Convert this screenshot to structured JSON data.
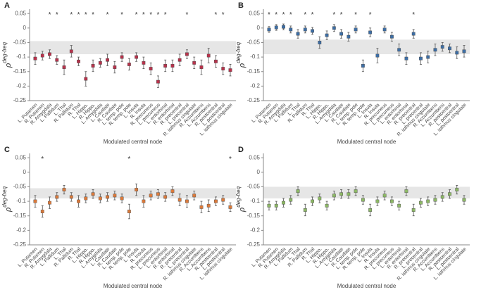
{
  "chart_data": [
    {
      "type": "errorbar",
      "panel_label": "A",
      "x_label": "Modulated central node",
      "y_label": "ρ",
      "y_label_sup": "deg-freq",
      "color": "#b8324b",
      "band_color": "#e6e6e6",
      "categories": [
        "L. Putamen",
        "R. Putamen",
        "R. Amygdala",
        "L. Pallidum",
        "L. Thal",
        "R. Pallidum",
        "R. Thal",
        "L. Hippo.",
        "R. Hippo.",
        "L. Amygdala",
        "L. Caudate",
        "R. Caudate",
        "L. temp. pole",
        "R. temp. pole",
        "L. Insula",
        "R. Insula",
        "R. precuneus",
        "L. precuneus",
        "L. entorhinal",
        "R. entorhinal",
        "R. precentral",
        "L. precentral",
        "R. isthmus cingulate",
        "R. Accumbens",
        "L. Accumbens",
        "R. postcentral",
        "L. postcentral",
        "L. isthmus cingulate"
      ],
      "values": [
        -0.105,
        -0.095,
        -0.09,
        -0.11,
        -0.135,
        -0.08,
        -0.115,
        -0.175,
        -0.13,
        -0.12,
        -0.11,
        -0.135,
        -0.1,
        -0.125,
        -0.1,
        -0.12,
        -0.14,
        -0.185,
        -0.13,
        -0.13,
        -0.11,
        -0.09,
        -0.12,
        -0.135,
        -0.095,
        -0.115,
        -0.14,
        -0.145
      ],
      "errors": [
        0.02,
        0.015,
        0.015,
        0.015,
        0.025,
        0.02,
        0.015,
        0.025,
        0.02,
        0.015,
        0.02,
        0.02,
        0.015,
        0.02,
        0.015,
        0.02,
        0.02,
        0.02,
        0.02,
        0.02,
        0.02,
        0.015,
        0.02,
        0.025,
        0.025,
        0.02,
        0.02,
        0.02
      ],
      "significant": [
        false,
        false,
        true,
        true,
        false,
        true,
        true,
        true,
        true,
        false,
        true,
        false,
        true,
        false,
        true,
        true,
        true,
        true,
        true,
        false,
        false,
        true,
        false,
        false,
        false,
        true,
        true,
        false
      ],
      "star_label": "*",
      "band": [
        -0.09,
        -0.045
      ],
      "ylim": [
        -0.25,
        0.065
      ],
      "yticks": [
        -0.25,
        -0.2,
        -0.15,
        -0.1,
        -0.05,
        0,
        0.05
      ]
    },
    {
      "type": "errorbar",
      "panel_label": "B",
      "x_label": "Modulated central node",
      "y_label": "ρ",
      "y_label_sup": "deg-freq",
      "color": "#3d6ea5",
      "band_color": "#e6e6e6",
      "categories": [
        "L. Putamen",
        "R. Putamen",
        "R. Amygdala",
        "L. Pallidum",
        "L. Thal",
        "R. Pallidum",
        "R. Thal",
        "L. Hippo.",
        "R. Hippo.",
        "L. Amygdala",
        "L. Caudate",
        "R. Caudate",
        "L. temp. pole",
        "R. temp. pole",
        "L. Insula",
        "R. Insula",
        "R. precuneus",
        "L. precuneus",
        "L. entorhinal",
        "R. entorhinal",
        "R. precentral",
        "L. precentral",
        "R. isthmus cingulate",
        "R. Accumbens",
        "L. Accumbens",
        "R. postcentral",
        "L. postcentral",
        "L. isthmus cingulate"
      ],
      "values": [
        -0.005,
        0.002,
        0.004,
        -0.005,
        -0.02,
        -0.005,
        -0.01,
        -0.05,
        -0.025,
        0,
        -0.02,
        -0.03,
        -0.005,
        -0.13,
        -0.015,
        -0.095,
        -0.005,
        -0.03,
        -0.075,
        -0.105,
        -0.02,
        -0.105,
        -0.1,
        -0.075,
        -0.065,
        -0.07,
        -0.085,
        -0.08
      ],
      "errors": [
        0.01,
        0.01,
        0.01,
        0.012,
        0.015,
        0.012,
        0.012,
        0.02,
        0.015,
        0.012,
        0.015,
        0.015,
        0.012,
        0.02,
        0.015,
        0.025,
        0.012,
        0.015,
        0.02,
        0.02,
        0.015,
        0.02,
        0.02,
        0.02,
        0.015,
        0.015,
        0.02,
        0.02
      ],
      "significant": [
        true,
        true,
        true,
        true,
        false,
        true,
        true,
        false,
        false,
        true,
        true,
        false,
        true,
        false,
        true,
        false,
        false,
        false,
        false,
        false,
        true,
        false,
        false,
        false,
        false,
        false,
        false,
        false
      ],
      "star_label": "*",
      "band": [
        -0.09,
        -0.04
      ],
      "ylim": [
        -0.25,
        0.065
      ],
      "yticks": [
        -0.25,
        -0.2,
        -0.15,
        -0.1,
        -0.05,
        0,
        0.05
      ]
    },
    {
      "type": "errorbar",
      "panel_label": "C",
      "x_label": "Modulated central node",
      "y_label": "ρ",
      "y_label_sup": "deg-freq",
      "color": "#dc7a3b",
      "band_color": "#e6e6e6",
      "categories": [
        "L. Putamen",
        "R. Putamen",
        "R. Amygdala",
        "L. Pallidum",
        "L. Thal",
        "R. Pallidum",
        "R. Thal",
        "L. Hippo.",
        "R. Hippo.",
        "L. Amygdala",
        "L. Caudate",
        "R. Caudate",
        "L. temp. pole",
        "R. temp. pole",
        "L. Insula",
        "R. Insula",
        "R. precuneus",
        "L. precuneus",
        "L. entorhinal",
        "R. entorhinal",
        "R. precentral",
        "L. precentral",
        "R. isthmus cingulate",
        "R. Accumbens",
        "L. Accumbens",
        "R. postcentral",
        "L. postcentral",
        "L. isthmus cingulate"
      ],
      "values": [
        -0.1,
        -0.135,
        -0.105,
        -0.085,
        -0.06,
        -0.085,
        -0.1,
        -0.09,
        -0.075,
        -0.09,
        -0.085,
        -0.08,
        -0.09,
        -0.135,
        -0.06,
        -0.1,
        -0.08,
        -0.075,
        -0.085,
        -0.065,
        -0.095,
        -0.1,
        -0.08,
        -0.12,
        -0.115,
        -0.1,
        -0.095,
        -0.12
      ],
      "errors": [
        0.02,
        0.02,
        0.02,
        0.015,
        0.015,
        0.015,
        0.02,
        0.015,
        0.015,
        0.015,
        0.015,
        0.015,
        0.015,
        0.025,
        0.02,
        0.02,
        0.015,
        0.015,
        0.015,
        0.015,
        0.02,
        0.02,
        0.015,
        0.02,
        0.02,
        0.015,
        0.015,
        0.015
      ],
      "significant": [
        false,
        true,
        false,
        false,
        false,
        false,
        false,
        false,
        false,
        false,
        false,
        false,
        false,
        true,
        false,
        false,
        false,
        false,
        false,
        false,
        false,
        false,
        false,
        false,
        false,
        false,
        false,
        true
      ],
      "star_label": "*",
      "band": [
        -0.09,
        -0.055
      ],
      "ylim": [
        -0.25,
        0.065
      ],
      "yticks": [
        -0.25,
        -0.2,
        -0.15,
        -0.1,
        -0.05,
        0,
        0.05
      ]
    },
    {
      "type": "errorbar",
      "panel_label": "D",
      "x_label": "Modulated central node",
      "y_label": "ρ",
      "y_label_sup": "deg-freq",
      "color": "#8db866",
      "band_color": "#e6e6e6",
      "categories": [
        "L. Putamen",
        "R. Putamen",
        "R. Amygdala",
        "L. Pallidum",
        "L. Thal",
        "R. Pallidum",
        "R. Thal",
        "L. Hippo.",
        "R. Hippo.",
        "L. Amygdala",
        "L. Caudate",
        "R. Caudate",
        "L. temp. pole",
        "R. temp. pole",
        "L. Insula",
        "R. Insula",
        "R. precuneus",
        "L. precuneus",
        "L. entorhinal",
        "R. entorhinal",
        "R. precentral",
        "L. precentral",
        "R. isthmus cingulate",
        "R. Accumbens",
        "L. Accumbens",
        "R. postcentral",
        "L. postcentral",
        "L. isthmus cingulate"
      ],
      "values": [
        -0.115,
        -0.115,
        -0.105,
        -0.095,
        -0.065,
        -0.13,
        -0.1,
        -0.09,
        -0.115,
        -0.08,
        -0.075,
        -0.075,
        -0.065,
        -0.095,
        -0.13,
        -0.1,
        -0.08,
        -0.1,
        -0.115,
        -0.065,
        -0.13,
        -0.105,
        -0.1,
        -0.095,
        -0.085,
        -0.075,
        -0.06,
        -0.095
      ],
      "errors": [
        0.015,
        0.015,
        0.015,
        0.015,
        0.015,
        0.02,
        0.015,
        0.015,
        0.015,
        0.015,
        0.015,
        0.015,
        0.015,
        0.015,
        0.02,
        0.015,
        0.015,
        0.015,
        0.015,
        0.015,
        0.02,
        0.015,
        0.015,
        0.015,
        0.015,
        0.015,
        0.015,
        0.015
      ],
      "significant": [
        false,
        false,
        false,
        false,
        false,
        false,
        false,
        false,
        false,
        false,
        false,
        false,
        false,
        false,
        false,
        false,
        false,
        false,
        false,
        false,
        false,
        false,
        false,
        false,
        false,
        false,
        false,
        false
      ],
      "star_label": "*",
      "band": [
        -0.09,
        -0.05
      ],
      "ylim": [
        -0.25,
        0.065
      ],
      "yticks": [
        -0.25,
        -0.2,
        -0.15,
        -0.1,
        -0.05,
        0,
        0.05
      ]
    }
  ]
}
